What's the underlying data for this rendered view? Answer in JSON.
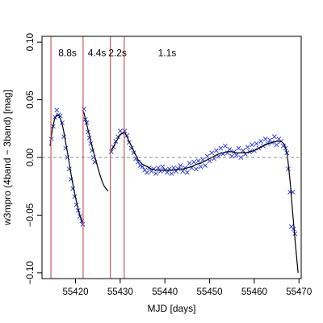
{
  "chart_data": {
    "type": "scatter",
    "xlabel": "MJD [days]",
    "ylabel": "w3mpro (4band − 3band) [mag]",
    "xlim": [
      55412.5,
      55470.5
    ],
    "ylim": [
      -0.105,
      0.105
    ],
    "x_ticks": [
      55420,
      55430,
      55440,
      55450,
      55460,
      55470
    ],
    "y_ticks": [
      -0.1,
      -0.05,
      0.0,
      0.05,
      0.1
    ],
    "x_tick_labels": [
      "55420",
      "55430",
      "55440",
      "55450",
      "55460",
      "55470"
    ],
    "y_tick_labels": [
      "−0.10",
      "−0.05",
      "0.00",
      "0.05",
      "0.10"
    ],
    "grid": false,
    "zero_line": {
      "y": 0,
      "style": "dashed",
      "color": "#888888"
    },
    "vertical_lines": [
      {
        "x": 55414.5,
        "color": "#c0504d"
      },
      {
        "x": 55421.7,
        "color": "#c0504d"
      },
      {
        "x": 55427.8,
        "color": "#c0504d"
      },
      {
        "x": 55430.9,
        "color": "#c0504d"
      }
    ],
    "annotations": [
      {
        "text": "8.8s",
        "x": 55418.2,
        "y": 0.088
      },
      {
        "text": "4.4s",
        "x": 55424.8,
        "y": 0.088
      },
      {
        "text": "2.2s",
        "x": 55429.4,
        "y": 0.088
      },
      {
        "text": "1.1s",
        "x": 55440.5,
        "y": 0.088
      }
    ],
    "colors": {
      "points": "#2233dd",
      "curve": "#000000",
      "vlines": "#c0504d",
      "zero_line": "#888888"
    },
    "series": [
      {
        "kind": "points",
        "marker": "x",
        "segments": [
          {
            "x": [
              55414.6,
              55415.0,
              55415.4,
              55415.8,
              55416.2,
              55416.6,
              55417.0,
              55417.4,
              55417.8,
              55418.2,
              55418.6,
              55419.0,
              55419.4,
              55419.8,
              55420.2,
              55420.6,
              55421.0,
              55421.4,
              55421.6
            ],
            "y": [
              0.016,
              0.027,
              0.035,
              0.041,
              0.037,
              0.036,
              0.03,
              0.018,
              0.008,
              0.0,
              -0.01,
              -0.019,
              -0.027,
              -0.034,
              -0.041,
              -0.046,
              -0.051,
              -0.055,
              -0.058
            ]
          },
          {
            "x": [
              55421.9,
              55422.2,
              55422.5,
              55422.8,
              55423.1,
              55423.4,
              55423.7,
              55424.0,
              55424.3
            ],
            "y": [
              0.042,
              0.033,
              0.03,
              0.022,
              0.017,
              0.012,
              0.006,
              0.0,
              -0.004
            ]
          },
          {
            "x": [
              55428.0,
              55428.5,
              55429.0,
              55429.5,
              55430.0,
              55430.5,
              55431.0,
              55431.5,
              55432.0,
              55432.5,
              55433.0,
              55433.5,
              55434.0,
              55434.5,
              55435.0,
              55435.5,
              55436.0,
              55436.5,
              55437.0,
              55437.5,
              55438.0,
              55438.5,
              55439.0,
              55439.5,
              55440.0,
              55440.5,
              55441.0,
              55441.5,
              55442.0,
              55442.5,
              55443.0,
              55443.5,
              55444.0,
              55444.5,
              55445.0,
              55445.5,
              55446.0,
              55446.5,
              55447.0,
              55447.5,
              55448.0,
              55448.5,
              55449.0,
              55449.5,
              55450.0,
              55450.5,
              55451.0,
              55451.5,
              55452.0,
              55452.5,
              55453.0,
              55453.5,
              55454.0,
              55454.5,
              55455.0,
              55455.5,
              55456.0,
              55456.5,
              55457.0,
              55457.5,
              55458.0,
              55458.5,
              55459.0,
              55459.5,
              55460.0,
              55460.5,
              55461.0,
              55461.5,
              55462.0,
              55462.5,
              55463.0,
              55463.5,
              55464.0,
              55464.5,
              55465.0,
              55465.5,
              55466.0,
              55466.5,
              55467.0,
              55467.3,
              55467.6,
              55468.0,
              55468.3
            ],
            "y": [
              0.005,
              0.009,
              0.014,
              0.018,
              0.023,
              0.021,
              0.023,
              0.019,
              0.013,
              0.008,
              0.004,
              -0.001,
              -0.004,
              -0.007,
              -0.008,
              -0.011,
              -0.013,
              -0.009,
              -0.012,
              -0.01,
              -0.014,
              -0.009,
              -0.012,
              -0.008,
              -0.011,
              -0.013,
              -0.01,
              -0.014,
              -0.009,
              -0.012,
              -0.01,
              -0.007,
              -0.012,
              -0.009,
              -0.013,
              -0.005,
              -0.009,
              -0.004,
              -0.01,
              -0.003,
              -0.008,
              -0.002,
              -0.007,
              0.001,
              -0.003,
              0.004,
              -0.001,
              0.006,
              0.001,
              0.008,
              0.003,
              0.01,
              0.004,
              0.007,
              0.001,
              0.005,
              0.002,
              0.008,
              0.0,
              0.006,
              0.003,
              0.009,
              0.005,
              0.011,
              0.006,
              0.012,
              0.008,
              0.014,
              0.01,
              0.016,
              0.012,
              0.015,
              0.013,
              0.018,
              0.011,
              0.016,
              0.014,
              0.01,
              0.008,
              0.004,
              -0.01,
              -0.03,
              -0.06
            ]
          },
          {
            "x": [
              55468.6,
              55468.8,
              55469.1
            ],
            "y": [
              -0.03,
              -0.062,
              -0.066
            ]
          }
        ]
      },
      {
        "kind": "curve",
        "segments": [
          {
            "x": [
              55414.3,
              55414.8,
              55415.3,
              55415.8,
              55416.3,
              55416.8,
              55417.3,
              55417.8,
              55418.3,
              55418.8,
              55419.3,
              55419.8,
              55420.3,
              55420.8,
              55421.3,
              55421.6
            ],
            "y": [
              0.01,
              0.024,
              0.033,
              0.037,
              0.036,
              0.032,
              0.024,
              0.013,
              0.002,
              -0.01,
              -0.021,
              -0.031,
              -0.04,
              -0.048,
              -0.054,
              -0.057
            ]
          },
          {
            "x": [
              55421.8,
              55422.3,
              55422.8,
              55423.3,
              55423.8,
              55424.3,
              55424.8,
              55425.3,
              55425.8,
              55426.3,
              55426.8,
              55427.3
            ],
            "y": [
              0.04,
              0.032,
              0.024,
              0.016,
              0.008,
              0.001,
              -0.006,
              -0.013,
              -0.019,
              -0.024,
              -0.027,
              -0.029
            ]
          },
          {
            "x": [
              55428.0,
              55429.0,
              55430.0,
              55431.0,
              55432.0,
              55433.0,
              55434.0,
              55435.0,
              55436.0,
              55437.0,
              55438.0,
              55439.0,
              55440.0,
              55441.0,
              55442.0,
              55443.0,
              55444.0,
              55445.0,
              55446.0,
              55447.0,
              55448.0,
              55449.0,
              55450.0,
              55451.0,
              55452.0,
              55453.0,
              55454.0,
              55455.0,
              55456.0,
              55457.0,
              55458.0,
              55459.0,
              55460.0,
              55461.0,
              55462.0,
              55463.0,
              55464.0,
              55465.0,
              55466.0,
              55466.8,
              55467.4,
              55468.0,
              55468.6,
              55469.2,
              55469.8
            ],
            "y": [
              0.006,
              0.013,
              0.02,
              0.022,
              0.014,
              0.006,
              -0.002,
              -0.006,
              -0.008,
              -0.01,
              -0.011,
              -0.011,
              -0.011,
              -0.011,
              -0.011,
              -0.01,
              -0.01,
              -0.009,
              -0.008,
              -0.006,
              -0.005,
              -0.003,
              -0.001,
              0.001,
              0.003,
              0.004,
              0.005,
              0.005,
              0.004,
              0.004,
              0.004,
              0.005,
              0.006,
              0.008,
              0.01,
              0.012,
              0.013,
              0.014,
              0.014,
              0.011,
              0.002,
              -0.02,
              -0.048,
              -0.075,
              -0.1
            ]
          }
        ]
      }
    ]
  }
}
